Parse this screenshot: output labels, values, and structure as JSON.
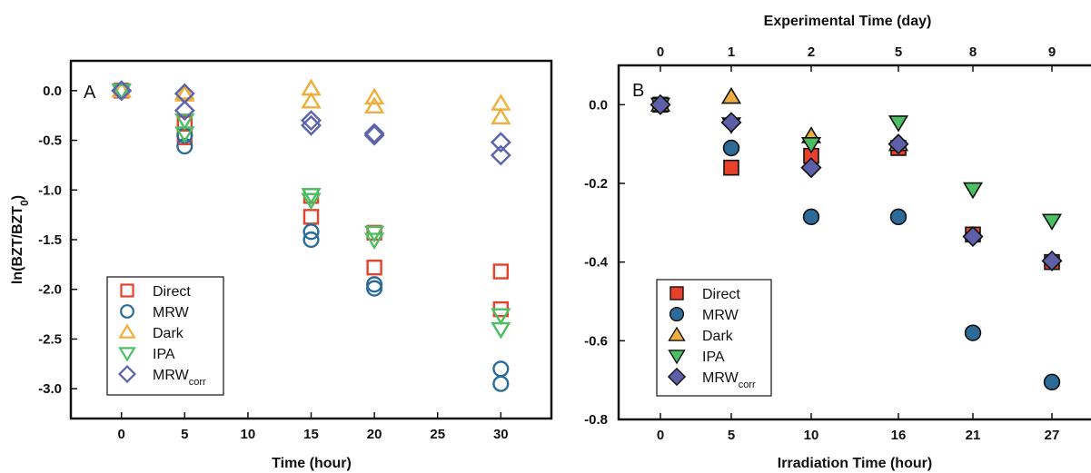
{
  "colors": {
    "direct": "#e8412b",
    "mrw": "#2a6b9a",
    "dark": "#f0ae3c",
    "ipa": "#4cbf63",
    "mrw_corr": "#5a64ad",
    "mrw_fill": "#2e6a98",
    "mrw_corr_fill": "#5d60a8"
  },
  "ylabel_base": "ln(BZT/BZT",
  "ylabel_sub": "0",
  "ylabel_close": ")",
  "chart_data": [
    {
      "type": "scatter",
      "panel": "A",
      "xlabel": "Time (hour)",
      "ylabel": "ln(BZT/BZT0)",
      "xlim": [
        -4,
        34
      ],
      "ylim": [
        -3.3,
        0.3
      ],
      "xticks": [
        0,
        5,
        10,
        15,
        20,
        25,
        30
      ],
      "yticks": [
        0.0,
        -0.5,
        -1.0,
        -1.5,
        -2.0,
        -2.5,
        -3.0
      ],
      "ytick_labels": [
        "0.0",
        "-0.5",
        "-1.0",
        "-1.5",
        "-2.0",
        "-2.5",
        "-3.0"
      ],
      "legend": {
        "position": "bottom-left",
        "entries": [
          "Direct",
          "MRW",
          "Dark",
          "IPA",
          "MRW"
        ],
        "corr_subscript": "corr"
      },
      "series": [
        {
          "name": "Direct",
          "marker": "square",
          "points": [
            [
              0,
              0
            ],
            [
              0,
              0
            ],
            [
              5,
              -0.33
            ],
            [
              5,
              -0.47
            ],
            [
              15,
              -1.06
            ],
            [
              15,
              -1.27
            ],
            [
              20,
              -1.43
            ],
            [
              20,
              -1.78
            ],
            [
              30,
              -1.82
            ],
            [
              30,
              -2.2
            ]
          ]
        },
        {
          "name": "MRW",
          "marker": "circle",
          "points": [
            [
              0,
              0
            ],
            [
              0,
              0
            ],
            [
              5,
              -0.45
            ],
            [
              5,
              -0.56
            ],
            [
              15,
              -1.42
            ],
            [
              15,
              -1.5
            ],
            [
              20,
              -1.95
            ],
            [
              20,
              -1.99
            ],
            [
              30,
              -2.8
            ],
            [
              30,
              -2.95
            ]
          ]
        },
        {
          "name": "Dark",
          "marker": "triangle-up",
          "points": [
            [
              0,
              0
            ],
            [
              0,
              0
            ],
            [
              5,
              -0.02
            ],
            [
              5,
              -0.04
            ],
            [
              15,
              0.02
            ],
            [
              15,
              -0.11
            ],
            [
              20,
              -0.07
            ],
            [
              20,
              -0.16
            ],
            [
              30,
              -0.13
            ],
            [
              30,
              -0.27
            ]
          ]
        },
        {
          "name": "IPA",
          "marker": "triangle-down",
          "points": [
            [
              0,
              0
            ],
            [
              0,
              0
            ],
            [
              5,
              -0.3
            ],
            [
              5,
              -0.43
            ],
            [
              15,
              -1.05
            ],
            [
              15,
              -1.1
            ],
            [
              20,
              -1.43
            ],
            [
              20,
              -1.5
            ],
            [
              30,
              -2.26
            ],
            [
              30,
              -2.4
            ]
          ]
        },
        {
          "name": "MRWcorr",
          "marker": "diamond",
          "points": [
            [
              0,
              0
            ],
            [
              0,
              0
            ],
            [
              5,
              -0.03
            ],
            [
              5,
              -0.2
            ],
            [
              15,
              -0.3
            ],
            [
              15,
              -0.35
            ],
            [
              20,
              -0.43
            ],
            [
              20,
              -0.45
            ],
            [
              30,
              -0.52
            ],
            [
              30,
              -0.65
            ]
          ]
        }
      ]
    },
    {
      "type": "scatter",
      "panel": "B",
      "xlabel": "Irradiation Time (hour)",
      "x2label": "Experimental Time (day)",
      "ylabel": "",
      "ylim": [
        -0.8,
        0.1
      ],
      "xticks": [
        "0",
        "5",
        "10",
        "16",
        "21",
        "27"
      ],
      "x2ticks": [
        "0",
        "1",
        "2",
        "5",
        "8",
        "9"
      ],
      "yticks": [
        0.0,
        -0.2,
        -0.4,
        -0.6,
        -0.8
      ],
      "ytick_labels": [
        "0.0",
        "-0.2",
        "-0.4",
        "-0.6",
        "-0.8"
      ],
      "legend": {
        "position": "bottom-left",
        "entries": [
          "Direct",
          "MRW",
          "Dark",
          "IPA",
          "MRW"
        ],
        "corr_subscript": "corr"
      },
      "series": [
        {
          "name": "Direct",
          "marker": "square",
          "points": [
            [
              0,
              0
            ],
            [
              5,
              -0.16
            ],
            [
              10,
              -0.13
            ],
            [
              16,
              -0.11
            ],
            [
              21,
              -0.33
            ],
            [
              27,
              -0.4
            ]
          ]
        },
        {
          "name": "MRW",
          "marker": "circle",
          "points": [
            [
              0,
              0
            ],
            [
              5,
              -0.11
            ],
            [
              10,
              -0.285
            ],
            [
              16,
              -0.285
            ],
            [
              21,
              -0.58
            ],
            [
              27,
              -0.705
            ]
          ]
        },
        {
          "name": "Dark",
          "marker": "triangle-up",
          "points": [
            [
              0,
              0
            ],
            [
              5,
              0.02
            ],
            [
              10,
              -0.08
            ],
            [
              16,
              -0.1
            ]
          ]
        },
        {
          "name": "IPA",
          "marker": "triangle-down",
          "points": [
            [
              0,
              0
            ],
            [
              5,
              -0.05
            ],
            [
              10,
              -0.1
            ],
            [
              16,
              -0.045
            ],
            [
              21,
              -0.215
            ],
            [
              27,
              -0.295
            ]
          ]
        },
        {
          "name": "MRWcorr",
          "marker": "diamond",
          "points": [
            [
              0,
              0
            ],
            [
              5,
              -0.045
            ],
            [
              10,
              -0.16
            ],
            [
              16,
              -0.1
            ],
            [
              21,
              -0.335
            ],
            [
              27,
              -0.397
            ]
          ]
        }
      ]
    }
  ]
}
